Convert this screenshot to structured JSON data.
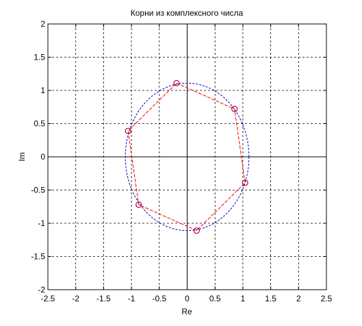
{
  "chart_data": {
    "type": "scatter",
    "title": "Корни из комплексного числа",
    "xlabel": "Re",
    "ylabel": "Im",
    "xlim": [
      -2.5,
      2.5
    ],
    "ylim": [
      -2,
      2
    ],
    "x_ticks": [
      -2.5,
      -2,
      -1.5,
      -1,
      -0.5,
      0,
      0.5,
      1,
      1.5,
      2,
      2.5
    ],
    "y_ticks": [
      -2,
      -1.5,
      -1,
      -0.5,
      0,
      0.5,
      1,
      1.5,
      2
    ],
    "x_tick_labels": [
      "-2.5",
      "-2",
      "-1.5",
      "-1",
      "-0.5",
      "0",
      "0.5",
      "1",
      "1.5",
      "2",
      "2.5"
    ],
    "y_tick_labels": [
      "-2",
      "-1.5",
      "-1",
      "-0.5",
      "0",
      "0.5",
      "1",
      "1.5",
      "2"
    ],
    "grid": true,
    "circle_radius": 1.11,
    "circle_color": "#0000cc",
    "polygon_color": "#ff0000",
    "marker_color": "#aa0033",
    "points": [
      {
        "x": -0.19,
        "y": 1.11
      },
      {
        "x": 0.85,
        "y": 0.72
      },
      {
        "x": 1.04,
        "y": -0.39
      },
      {
        "x": 0.17,
        "y": -1.11
      },
      {
        "x": -0.87,
        "y": -0.72
      },
      {
        "x": -1.06,
        "y": 0.39
      }
    ]
  }
}
